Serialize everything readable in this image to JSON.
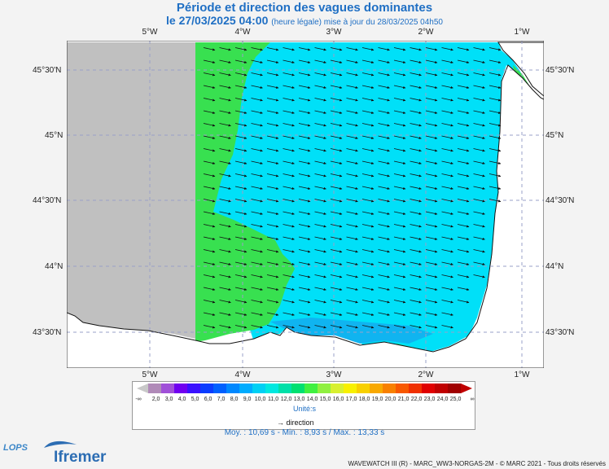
{
  "title": "Période et direction des vagues dominantes",
  "subtitle": {
    "date": "le 27/03/2025 04:00",
    "note": "(heure légale) mise à jour du 28/03/2025 04h50"
  },
  "axes": {
    "longitude_labels": [
      "5°W",
      "4°W",
      "3°W",
      "2°W",
      "1°W"
    ],
    "latitude_labels": [
      "45°30'N",
      "45°N",
      "44°30'N",
      "44°N",
      "43°30'N"
    ]
  },
  "legend": {
    "min_symbol": "-∞",
    "max_symbol": "∞",
    "ticks": [
      "2,0",
      "3,0",
      "4,0",
      "5,0",
      "6,0",
      "7,0",
      "8,0",
      "9,0",
      "10,0",
      "11,0",
      "12,0",
      "13,0",
      "14,0",
      "15,0",
      "16,0",
      "17,0",
      "18,0",
      "19,0",
      "20,0",
      "21,0",
      "22,0",
      "23,0",
      "24,0",
      "25,0"
    ],
    "colors": [
      "#b08ab8",
      "#a050d8",
      "#7000f0",
      "#3a10ff",
      "#0a3cff",
      "#0060ff",
      "#0088ff",
      "#00acff",
      "#00d0f4",
      "#00e8e0",
      "#00e0a8",
      "#00e070",
      "#40f040",
      "#90f040",
      "#d8f030",
      "#f8f000",
      "#f8d000",
      "#f8a800",
      "#f88000",
      "#f85800",
      "#f03000",
      "#e00000",
      "#c00000",
      "#a00000"
    ],
    "unit": "Unité:s",
    "direction_label": "direction"
  },
  "stats": {
    "text": "Moy. : 10,69 s   -   Min. : 8,93 s / Max. : 13,33 s"
  },
  "footer": {
    "credit": "WAVEWATCH III (R) - MARC_WW3-NORGAS-2M - © MARC 2021 - Tous droits réservés",
    "logo_lops": "LOPS",
    "logo_ifremer": "Ifremer"
  },
  "map_colors": {
    "land": "#ffffff",
    "nodata": "#c0c0c0",
    "cyan": "#00e0f8",
    "green": "#38e050",
    "blue": "#10b4f0"
  }
}
